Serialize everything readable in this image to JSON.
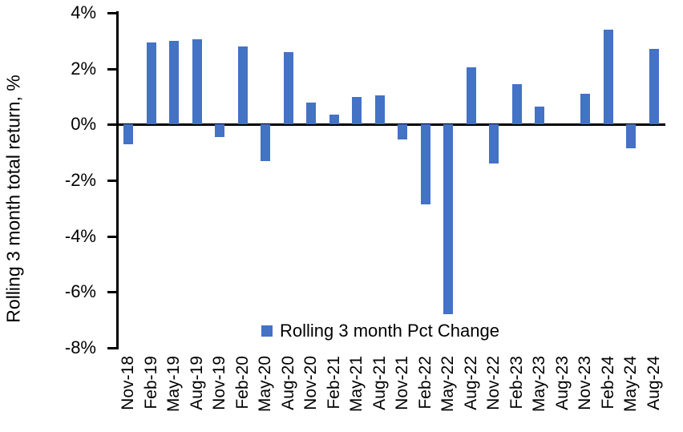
{
  "chart_data": {
    "type": "bar",
    "title": "",
    "xlabel": "",
    "ylabel": "Rolling 3 month total return, %",
    "ylim": [
      -8,
      4
    ],
    "grid": false,
    "legend_position": "bottom-center",
    "legend": {
      "label": "Rolling 3 month Pct Change",
      "marker": "square"
    },
    "colors": {
      "bar": "#4472C4",
      "axis": "#000000",
      "text": "#000000",
      "background": "#ffffff"
    },
    "yticks": [
      {
        "value": 4,
        "label": "4%"
      },
      {
        "value": 2,
        "label": "2%"
      },
      {
        "value": 0,
        "label": "0%"
      },
      {
        "value": -2,
        "label": "-2%"
      },
      {
        "value": -4,
        "label": "-4%"
      },
      {
        "value": -6,
        "label": "-6%"
      },
      {
        "value": -8,
        "label": "-8%"
      }
    ],
    "categories": [
      "Nov-18",
      "Feb-19",
      "May-19",
      "Aug-19",
      "Nov-19",
      "Feb-20",
      "May-20",
      "Aug-20",
      "Nov-20",
      "Feb-21",
      "May-21",
      "Aug-21",
      "Nov-21",
      "Feb-22",
      "May-22",
      "Aug-22",
      "Nov-22",
      "Feb-23",
      "May-23",
      "Aug-23",
      "Nov-23",
      "Feb-24",
      "May-24",
      "Aug-24"
    ],
    "values": [
      -0.7,
      2.95,
      3.0,
      3.05,
      -0.45,
      2.8,
      -1.3,
      2.6,
      0.8,
      0.35,
      1.0,
      1.05,
      -0.55,
      -2.85,
      -6.8,
      2.05,
      -1.4,
      1.45,
      0.65,
      0.0,
      1.1,
      3.4,
      -0.85,
      2.7
    ]
  }
}
